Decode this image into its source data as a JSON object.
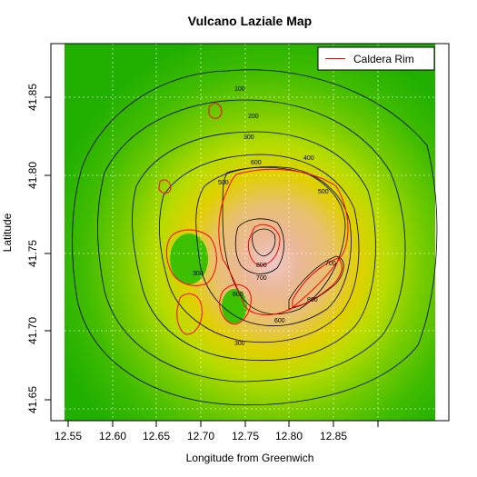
{
  "title": "Vulcano Laziale Map",
  "xlabel": "Longitude from Greenwich",
  "ylabel": "Latitude",
  "legend": {
    "label": "Caldera Rim",
    "color": "#ff0000"
  },
  "colors": {
    "low": "#21b400",
    "mid": "#c8dc00",
    "high": "#e8b060",
    "peak": "#f0c8c8"
  },
  "chart_data": {
    "type": "heatmap",
    "xlim": [
      12.555,
      12.89
    ],
    "ylim": [
      41.645,
      41.885
    ],
    "x_ticks": [
      "12.55",
      "12.60",
      "12.65",
      "12.70",
      "12.75",
      "12.80",
      "12.85"
    ],
    "y_ticks": [
      "41.65",
      "41.70",
      "41.75",
      "41.80",
      "41.85"
    ],
    "contour_labels": [
      "100",
      "200",
      "300",
      "400",
      "500",
      "600",
      "500",
      "300",
      "600",
      "700",
      "800",
      "700",
      "800",
      "600",
      "300"
    ]
  }
}
